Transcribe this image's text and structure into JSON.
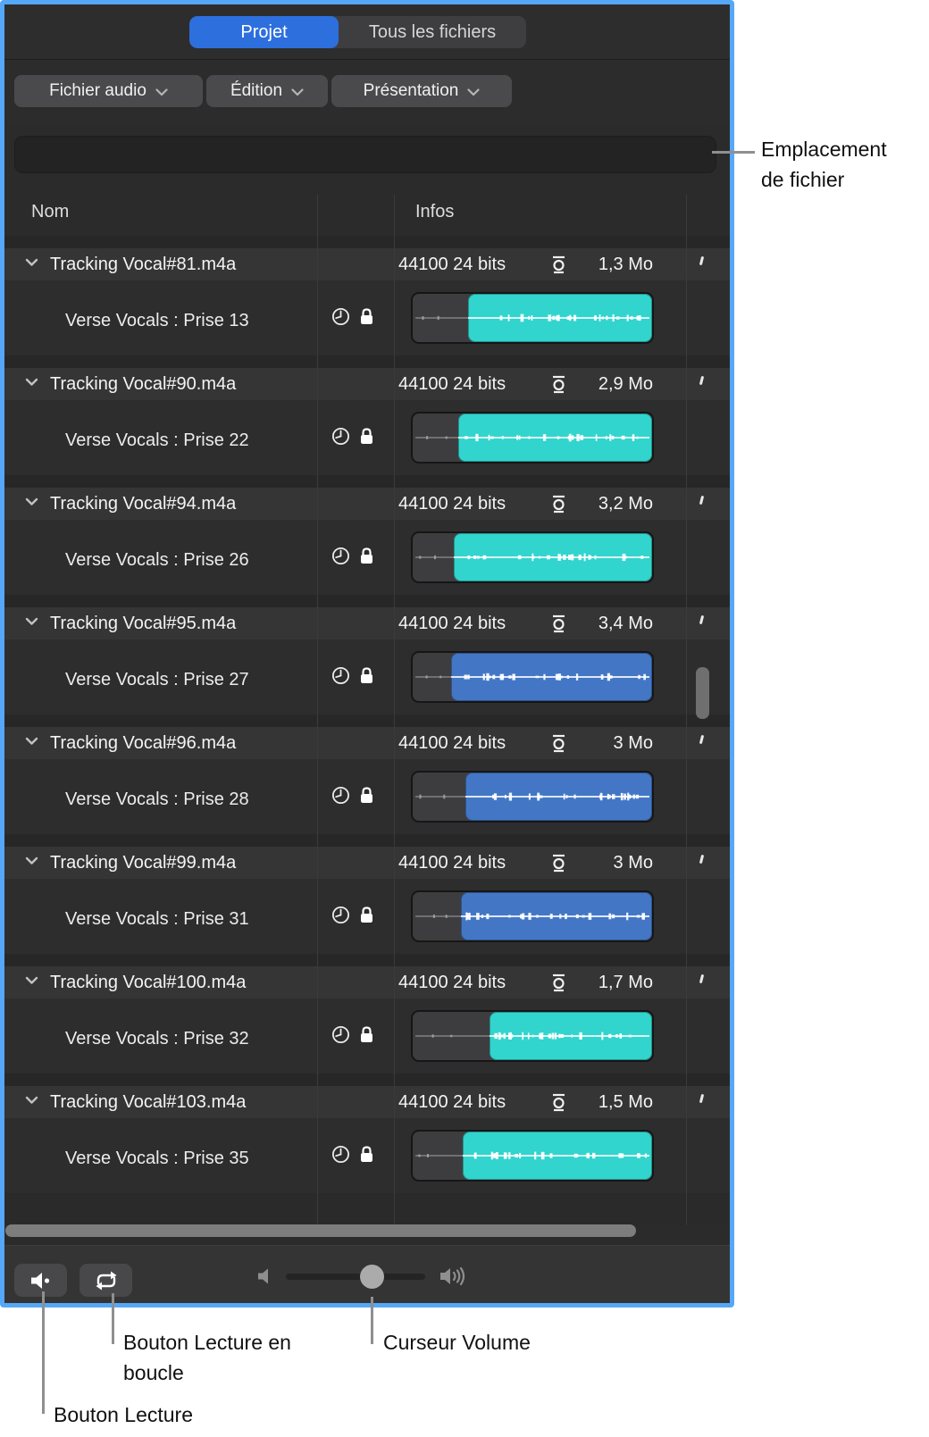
{
  "tabs": {
    "project": "Projet",
    "all_files": "Tous les fichiers"
  },
  "menus": [
    {
      "label": "Fichier audio"
    },
    {
      "label": "Édition"
    },
    {
      "label": "Présentation"
    }
  ],
  "file_location_bar": {
    "value": ""
  },
  "columns": {
    "name": "Nom",
    "infos": "Infos"
  },
  "files": [
    {
      "name": "Tracking Vocal#81.m4a",
      "sample_rate": "44100",
      "bit_depth": "24 bits",
      "size": "1,3 Mo",
      "take": "Verse Vocals : Prise 13",
      "region_color": "cyan",
      "region_start": 0.23
    },
    {
      "name": "Tracking Vocal#90.m4a",
      "sample_rate": "44100",
      "bit_depth": "24 bits",
      "size": "2,9 Mo",
      "take": "Verse Vocals : Prise 22",
      "region_color": "cyan",
      "region_start": 0.19
    },
    {
      "name": "Tracking Vocal#94.m4a",
      "sample_rate": "44100",
      "bit_depth": "24 bits",
      "size": "3,2 Mo",
      "take": "Verse Vocals : Prise 26",
      "region_color": "cyan",
      "region_start": 0.17
    },
    {
      "name": "Tracking Vocal#95.m4a",
      "sample_rate": "44100",
      "bit_depth": "24 bits",
      "size": "3,4 Mo",
      "take": "Verse Vocals : Prise 27",
      "region_color": "blue",
      "region_start": 0.16
    },
    {
      "name": "Tracking Vocal#96.m4a",
      "sample_rate": "44100",
      "bit_depth": "24 bits",
      "size": "3 Mo",
      "take": "Verse Vocals : Prise 28",
      "region_color": "blue",
      "region_start": 0.22
    },
    {
      "name": "Tracking Vocal#99.m4a",
      "sample_rate": "44100",
      "bit_depth": "24 bits",
      "size": "3 Mo",
      "take": "Verse Vocals : Prise 31",
      "region_color": "blue",
      "region_start": 0.2
    },
    {
      "name": "Tracking Vocal#100.m4a",
      "sample_rate": "44100",
      "bit_depth": "24 bits",
      "size": "1,7 Mo",
      "take": "Verse Vocals : Prise 32",
      "region_color": "cyan",
      "region_start": 0.32
    },
    {
      "name": "Tracking Vocal#103.m4a",
      "sample_rate": "44100",
      "bit_depth": "24 bits",
      "size": "1,5 Mo",
      "take": "Verse Vocals : Prise 35",
      "region_color": "cyan",
      "region_start": 0.21
    }
  ],
  "colors": {
    "focus_ring": "#55a7f7",
    "tab_selected": "#2d6fdd",
    "waveform_cyan": "#31d5cd",
    "waveform_blue": "#4377c6"
  },
  "icons": {
    "disclosure": "chevron-down",
    "anchor": "clock",
    "protected": "lock",
    "info_flag": "circle-with-over-underline",
    "play": "speaker",
    "loop": "repeat-arrows",
    "volume_min": "speaker-quiet",
    "volume_max": "speaker-loud"
  },
  "annotations": {
    "file_location": "Emplacement de fichier",
    "loop_button": "Bouton Lecture en boucle",
    "volume_slider": "Curseur Volume",
    "play_button": "Bouton Lecture"
  }
}
